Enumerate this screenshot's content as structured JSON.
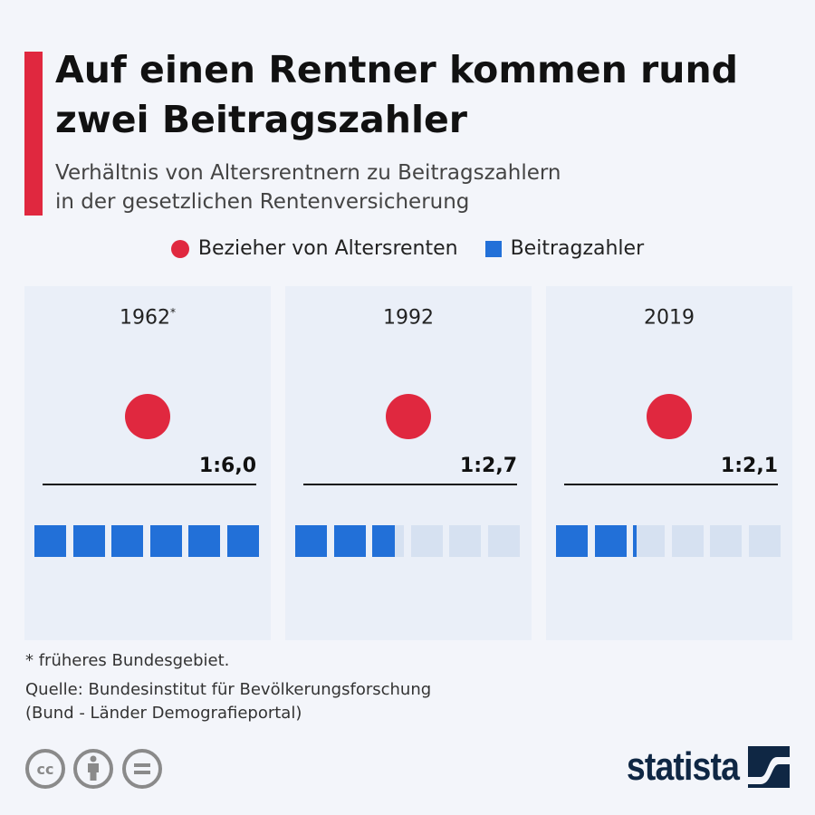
{
  "title": "Auf einen Rentner kommen rund zwei Beitragszahler",
  "subtitle_line1": "Verhältnis von Altersrentnern zu Beitragszahlern",
  "subtitle_line2": "in der gesetzlichen Rentenversicherung",
  "legend": {
    "pensioners": "Bezieher von Altersrenten",
    "contributors": "Beitragzahler"
  },
  "colors": {
    "pensioners": "#e0283f",
    "contributors": "#2270d8",
    "empty": "#d6e1f1"
  },
  "chart_data": {
    "type": "pictogram",
    "max_units": 6,
    "categories": [
      "1962",
      "1992",
      "2019"
    ],
    "category_markers": [
      "*",
      "",
      ""
    ],
    "pensioners": [
      1,
      1,
      1
    ],
    "contributors": [
      6.0,
      2.7,
      2.1
    ],
    "labels": [
      "1:6,0",
      "1:2,7",
      "1:2,1"
    ]
  },
  "footnote": "* früheres Bundesgebiet.",
  "source_line1": "Quelle: Bundesinstitut für Bevölkerungsforschung",
  "source_line2": "(Bund - Länder Demografieportal)",
  "license_icons": [
    "cc-icon",
    "attribution-icon",
    "no-derivatives-icon"
  ],
  "brand": "statista"
}
